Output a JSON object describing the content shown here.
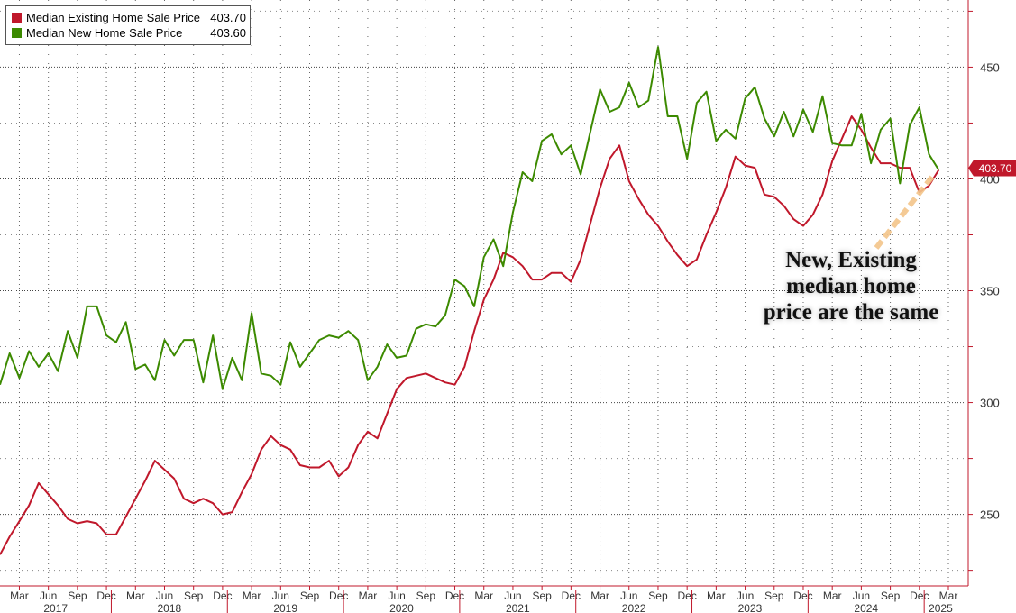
{
  "legend": [
    {
      "name": "Median Existing Home Sale Price",
      "value": "403.70",
      "color": "#c0182b"
    },
    {
      "name": "Median New Home Sale Price",
      "value": "403.60",
      "color": "#3c8a00"
    }
  ],
  "annotation": {
    "lines": [
      "New, Existing",
      "median home",
      "price are the same"
    ]
  },
  "last_value_label": "403.70",
  "chart_data": {
    "type": "line",
    "x_start": "2017-01",
    "x_end": "2025-03",
    "ylim": [
      218,
      480
    ],
    "y_ticks": [
      250,
      300,
      350,
      400,
      450
    ],
    "y_tick_labels": [
      "250",
      "300",
      "350",
      "400",
      "450"
    ],
    "grid": true,
    "legend_position": "top-left",
    "month_ticks": [
      {
        "date": "2017-03",
        "label": "Mar"
      },
      {
        "date": "2017-06",
        "label": "Jun"
      },
      {
        "date": "2017-09",
        "label": "Sep"
      },
      {
        "date": "2017-12",
        "label": "Dec"
      },
      {
        "date": "2018-03",
        "label": "Mar"
      },
      {
        "date": "2018-06",
        "label": "Jun"
      },
      {
        "date": "2018-09",
        "label": "Sep"
      },
      {
        "date": "2018-12",
        "label": "Dec"
      },
      {
        "date": "2019-03",
        "label": "Mar"
      },
      {
        "date": "2019-06",
        "label": "Jun"
      },
      {
        "date": "2019-09",
        "label": "Sep"
      },
      {
        "date": "2019-12",
        "label": "Dec"
      },
      {
        "date": "2020-03",
        "label": "Mar"
      },
      {
        "date": "2020-06",
        "label": "Jun"
      },
      {
        "date": "2020-09",
        "label": "Sep"
      },
      {
        "date": "2020-12",
        "label": "Dec"
      },
      {
        "date": "2021-03",
        "label": "Mar"
      },
      {
        "date": "2021-06",
        "label": "Jun"
      },
      {
        "date": "2021-09",
        "label": "Sep"
      },
      {
        "date": "2021-12",
        "label": "Dec"
      },
      {
        "date": "2022-03",
        "label": "Mar"
      },
      {
        "date": "2022-06",
        "label": "Jun"
      },
      {
        "date": "2022-09",
        "label": "Sep"
      },
      {
        "date": "2022-12",
        "label": "Dec"
      },
      {
        "date": "2023-03",
        "label": "Mar"
      },
      {
        "date": "2023-06",
        "label": "Jun"
      },
      {
        "date": "2023-09",
        "label": "Sep"
      },
      {
        "date": "2023-12",
        "label": "Dec"
      },
      {
        "date": "2024-03",
        "label": "Mar"
      },
      {
        "date": "2024-06",
        "label": "Jun"
      },
      {
        "date": "2024-09",
        "label": "Sep"
      },
      {
        "date": "2024-12",
        "label": "Dec"
      },
      {
        "date": "2025-03",
        "label": "Mar"
      }
    ],
    "year_labels": [
      "2017",
      "2018",
      "2019",
      "2020",
      "2021",
      "2022",
      "2023",
      "2024",
      "2025"
    ],
    "series": [
      {
        "name": "Median Existing Home Sale Price",
        "color": "#c0182b",
        "values": [
          232,
          240,
          247,
          254,
          264,
          259,
          254,
          248,
          246,
          247,
          246,
          241,
          241,
          249,
          257,
          265,
          274,
          270,
          266,
          257,
          255,
          257,
          255,
          250,
          251,
          260,
          268,
          279,
          285,
          281,
          279,
          272,
          271,
          271,
          274,
          267,
          271,
          281,
          287,
          284,
          295,
          306,
          311,
          312,
          313,
          311,
          309,
          308,
          316,
          332,
          346,
          355,
          367,
          365,
          361,
          355,
          355,
          358,
          358,
          354,
          364,
          380,
          396,
          409,
          415,
          399,
          391,
          384,
          379,
          372,
          366,
          361,
          364,
          375,
          385,
          396,
          410,
          406,
          405,
          393,
          392,
          388,
          382,
          379,
          384,
          393,
          408,
          418,
          428,
          422,
          414,
          407,
          407,
          405,
          405,
          394,
          397,
          404
        ]
      },
      {
        "name": "Median New Home Sale Price",
        "color": "#3c8a00",
        "values": [
          308,
          322,
          311,
          323,
          316,
          322,
          314,
          332,
          320,
          343,
          343,
          330,
          327,
          336,
          315,
          317,
          310,
          328,
          321,
          328,
          328,
          309,
          330,
          306,
          320,
          310,
          340,
          313,
          312,
          308,
          327,
          316,
          322,
          328,
          330,
          329,
          332,
          328,
          310,
          316,
          326,
          320,
          321,
          333,
          335,
          334,
          339,
          355,
          352,
          343,
          365,
          373,
          361,
          385,
          403,
          399,
          417,
          420,
          411,
          415,
          402,
          421,
          440,
          430,
          432,
          443,
          432,
          435,
          459,
          428,
          428,
          409,
          434,
          439,
          417,
          422,
          418,
          436,
          441,
          427,
          419,
          430,
          419,
          431,
          421,
          437,
          416,
          415,
          415,
          429,
          407,
          422,
          427,
          398,
          424,
          432,
          411,
          404
        ]
      }
    ]
  }
}
